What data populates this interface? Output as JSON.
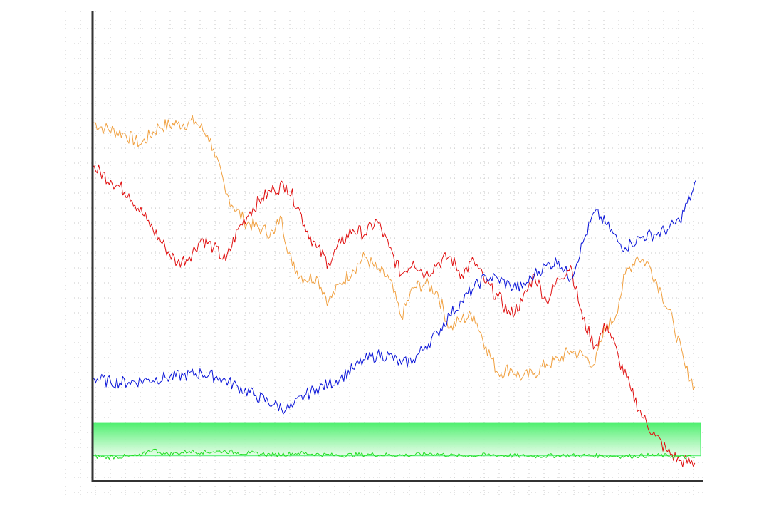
{
  "chart_data": {
    "type": "line",
    "title": "",
    "xlabel": "",
    "ylabel": "",
    "x_range": [
      0,
      100
    ],
    "ylim": [
      0,
      100
    ],
    "grid": true,
    "legend": "none",
    "band": {
      "y_from": 5.6,
      "y_to": 13.0,
      "color": "#44ee66"
    },
    "series": [
      {
        "color": "#f0a040",
        "x": [
          0,
          2,
          5,
          8,
          11,
          14,
          17,
          19,
          20,
          22,
          25,
          28,
          30,
          31,
          33,
          35,
          37,
          39,
          41,
          43,
          45,
          47,
          49,
          51,
          53,
          55,
          57,
          59,
          61,
          63,
          65,
          67,
          69,
          71,
          73,
          75,
          77,
          79,
          81,
          83,
          84,
          85,
          86,
          87,
          88,
          90,
          92,
          94,
          96,
          98,
          99.5
        ],
        "y": [
          80,
          78.5,
          77.5,
          75,
          79,
          79.5,
          80,
          77,
          74,
          64,
          58,
          56,
          55,
          59,
          48,
          45,
          45.5,
          40,
          44,
          47,
          50,
          47,
          45,
          36.5,
          43,
          44,
          42,
          34,
          36,
          37,
          30,
          24,
          25,
          23,
          24,
          26,
          27,
          29,
          28,
          26,
          31,
          35,
          35.5,
          40,
          46,
          50,
          48,
          42,
          35,
          25,
          21
        ]
      },
      {
        "color": "#e01010",
        "x": [
          0,
          3,
          6,
          9,
          12,
          14,
          16,
          18,
          20,
          22,
          24,
          26,
          28,
          30,
          32,
          34,
          35,
          37,
          39,
          41,
          43,
          45,
          47,
          49,
          51,
          53,
          55,
          57,
          59,
          61,
          63,
          65,
          67,
          69,
          71,
          73,
          75,
          77,
          79,
          81,
          83,
          85,
          87,
          89,
          91,
          93,
          95,
          97,
          99.5
        ],
        "y": [
          70,
          67,
          64,
          58,
          52,
          48.5,
          50,
          54,
          52,
          49,
          56,
          60,
          63,
          65,
          66,
          61,
          57,
          52,
          48.5,
          53,
          56,
          55,
          58,
          52,
          46,
          49,
          46,
          48.5,
          50,
          46,
          49,
          44,
          41,
          37,
          40,
          46,
          40,
          45,
          48,
          36,
          30,
          35,
          27,
          20,
          14,
          10,
          6.5,
          4.5,
          4
        ]
      },
      {
        "color": "#0a14d8",
        "x": [
          0,
          3,
          6,
          9,
          12,
          15,
          18,
          21,
          24,
          27,
          30,
          32,
          33,
          35,
          37,
          39,
          41,
          43,
          45,
          47,
          49,
          51,
          53,
          55,
          57,
          59,
          61,
          63,
          65,
          67,
          69,
          71,
          73,
          75,
          77,
          79,
          81,
          83,
          85,
          87,
          88,
          89,
          91,
          93,
          95,
          97,
          99,
          99.7
        ],
        "y": [
          23,
          22,
          22,
          22.5,
          23,
          23.5,
          24,
          23,
          21,
          19,
          17,
          16,
          16.5,
          19,
          20.5,
          21.5,
          23,
          25,
          27,
          28,
          28,
          26,
          27,
          30,
          33,
          37,
          40,
          43,
          45.5,
          45,
          43.5,
          43,
          46,
          48,
          49,
          45,
          53,
          60,
          57,
          53,
          52,
          53,
          54.5,
          55,
          56,
          58,
          64,
          67
        ]
      },
      {
        "color": "#22dd22",
        "x": [
          0,
          2,
          4,
          6,
          8,
          9,
          10,
          11,
          12,
          14,
          16,
          18,
          20,
          22,
          24,
          26,
          28,
          30,
          34,
          40,
          46,
          52,
          56,
          60,
          66,
          72,
          78,
          84,
          88,
          92,
          95,
          97,
          99.5
        ],
        "y": [
          5.5,
          5.3,
          5.4,
          5.5,
          5.6,
          6.5,
          7,
          6.5,
          6,
          6.2,
          6.6,
          6.4,
          6.5,
          6.6,
          6.3,
          6.2,
          6,
          5.8,
          6.2,
          5.7,
          5.9,
          5.7,
          6.1,
          5.6,
          5.8,
          5.5,
          5.7,
          5.6,
          5.5,
          5.7,
          5.6,
          5.4,
          5.2
        ]
      }
    ]
  }
}
